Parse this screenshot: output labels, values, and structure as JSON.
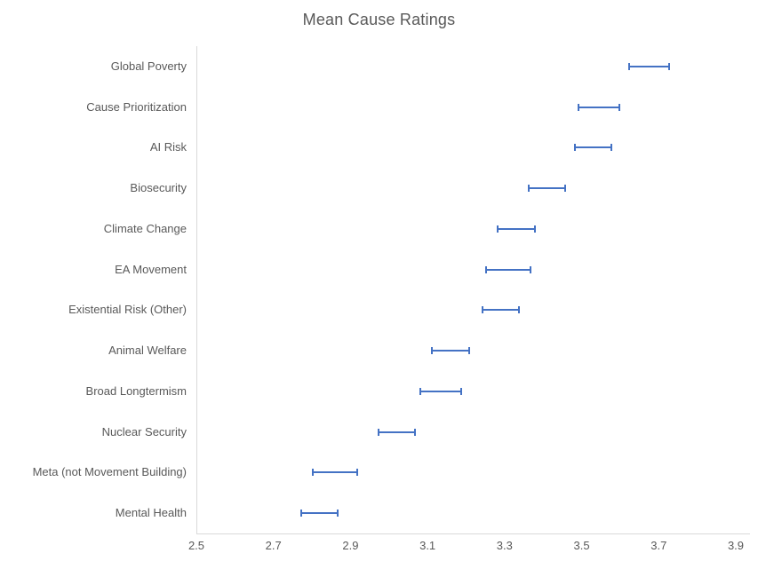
{
  "title": "Mean Cause Ratings",
  "chart_data": {
    "type": "scatter",
    "subtype": "horizontal_error_bars",
    "title": "Mean Cause Ratings",
    "categories": [
      "Global Poverty",
      "Cause Prioritization",
      "AI Risk",
      "Biosecurity",
      "Climate Change",
      "EA Movement",
      "Existential Risk (Other)",
      "Animal Welfare",
      "Broad Longtermism",
      "Nuclear Security",
      "Meta (not Movement Building)",
      "Mental Health"
    ],
    "series": [
      {
        "low": [
          3.62,
          3.49,
          3.48,
          3.36,
          3.28,
          3.25,
          3.24,
          3.11,
          3.08,
          2.97,
          2.8,
          2.77
        ],
        "high": [
          3.73,
          3.6,
          3.58,
          3.46,
          3.38,
          3.37,
          3.34,
          3.21,
          3.19,
          3.07,
          2.92,
          2.87
        ]
      }
    ],
    "xlabel": "",
    "ylabel": "",
    "xlim": [
      2.5,
      3.9
    ],
    "xticks": [
      "2.5",
      "2.7",
      "2.9",
      "3.1",
      "3.3",
      "3.5",
      "3.7",
      "3.9"
    ],
    "grid": false,
    "legend": "none",
    "colors": {
      "bar": "#4472C4",
      "axis": "#D9D9D9",
      "text": "#595959",
      "title": "#595959",
      "background": "#FFFFFF"
    }
  }
}
